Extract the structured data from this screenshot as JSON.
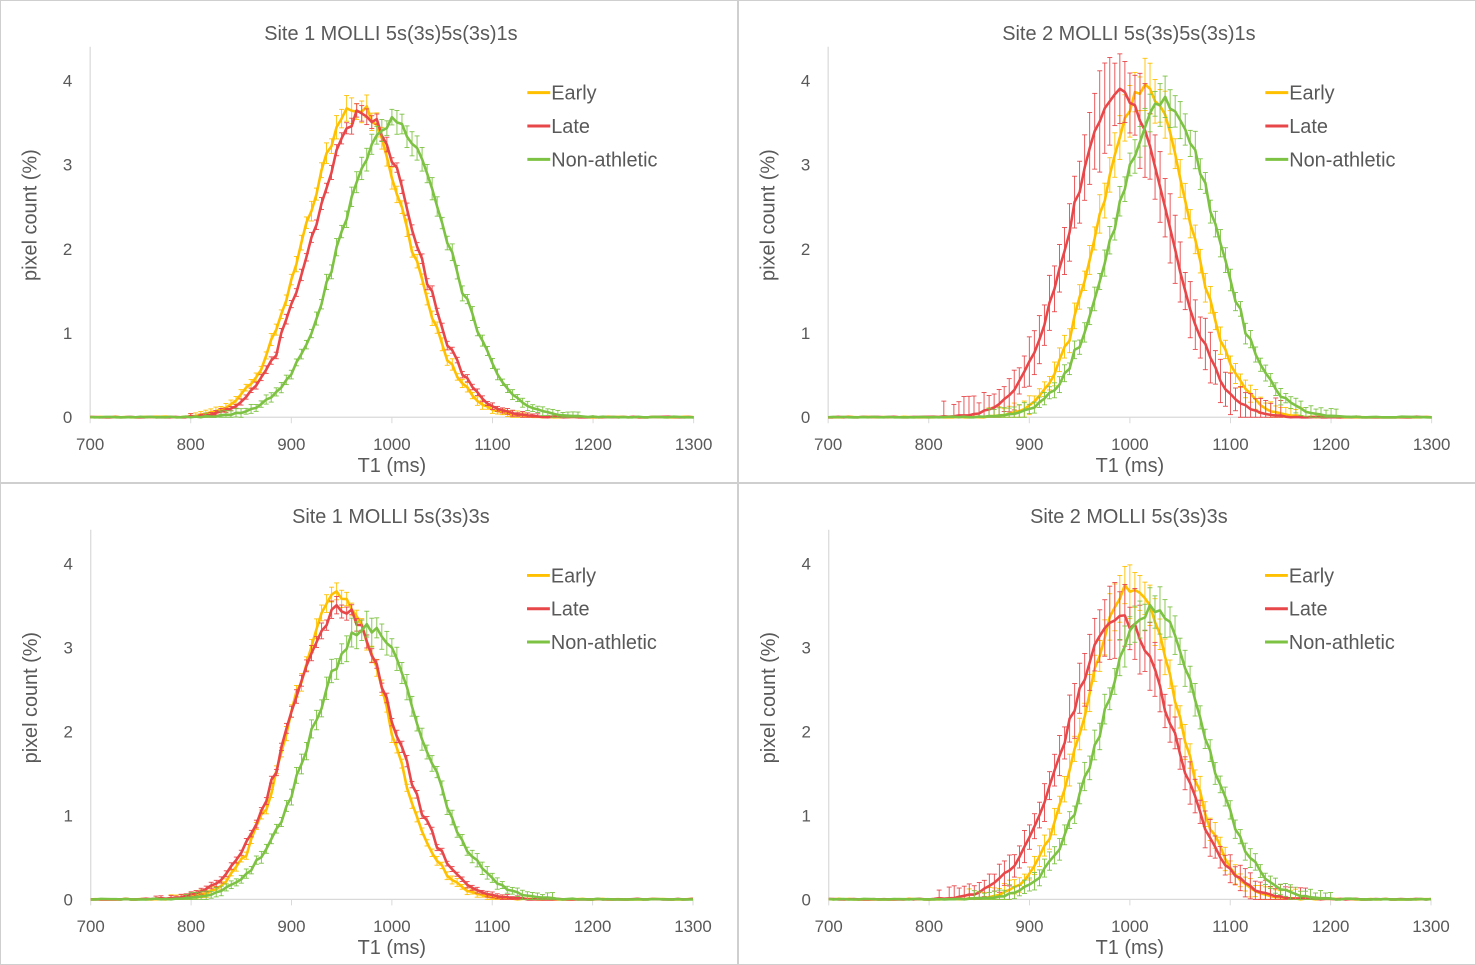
{
  "figure": {
    "colors": {
      "early": "#FFC000",
      "late": "#E8474A",
      "nonathletic": "#7DC243",
      "axis": "#d9d9d9",
      "text": "#595959"
    }
  },
  "chart_data": [
    {
      "type": "line",
      "title": "Site 1 MOLLI 5s(3s)5s(3s)1s",
      "xlabel": "T1 (ms)",
      "ylabel": "pixel count (%)",
      "xlim": [
        700,
        1300
      ],
      "ylim": [
        0,
        4.4
      ],
      "xticks": [
        700,
        800,
        900,
        1000,
        1100,
        1200,
        1300
      ],
      "yticks": [
        0,
        1,
        2,
        3,
        4
      ],
      "legend_position": "top-right",
      "series": [
        {
          "name": "Early",
          "color": "#FFC000",
          "peak_x": 965,
          "peak_y": 3.7,
          "width": 50,
          "error": 0.12
        },
        {
          "name": "Late",
          "color": "#E8474A",
          "peak_x": 972,
          "peak_y": 3.62,
          "width": 50,
          "error": 0.08
        },
        {
          "name": "Non-athletic",
          "color": "#7DC243",
          "peak_x": 1002,
          "peak_y": 3.5,
          "width": 53,
          "error": 0.12
        }
      ]
    },
    {
      "type": "line",
      "title": "Site 2 MOLLI 5s(3s)5s(3s)1s",
      "xlabel": "T1 (ms)",
      "ylabel": "pixel count (%)",
      "xlim": [
        700,
        1300
      ],
      "ylim": [
        0,
        4.4
      ],
      "xticks": [
        700,
        800,
        900,
        1000,
        1100,
        1200,
        1300
      ],
      "yticks": [
        0,
        1,
        2,
        3,
        4
      ],
      "legend_position": "top-right",
      "series": [
        {
          "name": "Early",
          "color": "#FFC000",
          "peak_x": 1015,
          "peak_y": 3.9,
          "width": 45,
          "error": 0.25
        },
        {
          "name": "Late",
          "color": "#E8474A",
          "peak_x": 990,
          "peak_y": 3.88,
          "width": 48,
          "error": 0.5
        },
        {
          "name": "Non-athletic",
          "color": "#7DC243",
          "peak_x": 1035,
          "peak_y": 3.75,
          "width": 50,
          "error": 0.2
        }
      ]
    },
    {
      "type": "line",
      "title": "Site 1 MOLLI 5s(3s)3s",
      "xlabel": "T1 (ms)",
      "ylabel": "pixel count (%)",
      "xlim": [
        700,
        1300
      ],
      "ylim": [
        0,
        4.4
      ],
      "xticks": [
        700,
        800,
        900,
        1000,
        1100,
        1200,
        1300
      ],
      "yticks": [
        0,
        1,
        2,
        3,
        4
      ],
      "legend_position": "top-right",
      "series": [
        {
          "name": "Early",
          "color": "#FFC000",
          "peak_x": 948,
          "peak_y": 3.62,
          "width": 48,
          "error": 0.1
        },
        {
          "name": "Late",
          "color": "#E8474A",
          "peak_x": 950,
          "peak_y": 3.45,
          "width": 52,
          "error": 0.08
        },
        {
          "name": "Non-athletic",
          "color": "#7DC243",
          "peak_x": 975,
          "peak_y": 3.25,
          "width": 55,
          "error": 0.14
        }
      ]
    },
    {
      "type": "line",
      "title": "Site 2 MOLLI 5s(3s)3s",
      "xlabel": "T1 (ms)",
      "ylabel": "pixel count (%)",
      "xlim": [
        700,
        1300
      ],
      "ylim": [
        0,
        4.4
      ],
      "xticks": [
        700,
        800,
        900,
        1000,
        1100,
        1200,
        1300
      ],
      "yticks": [
        0,
        1,
        2,
        3,
        4
      ],
      "legend_position": "top-right",
      "series": [
        {
          "name": "Early",
          "color": "#FFC000",
          "peak_x": 1002,
          "peak_y": 3.72,
          "width": 46,
          "error": 0.25
        },
        {
          "name": "Late",
          "color": "#E8474A",
          "peak_x": 990,
          "peak_y": 3.35,
          "width": 52,
          "error": 0.35
        },
        {
          "name": "Non-athletic",
          "color": "#7DC243",
          "peak_x": 1022,
          "peak_y": 3.45,
          "width": 50,
          "error": 0.22
        }
      ]
    }
  ]
}
